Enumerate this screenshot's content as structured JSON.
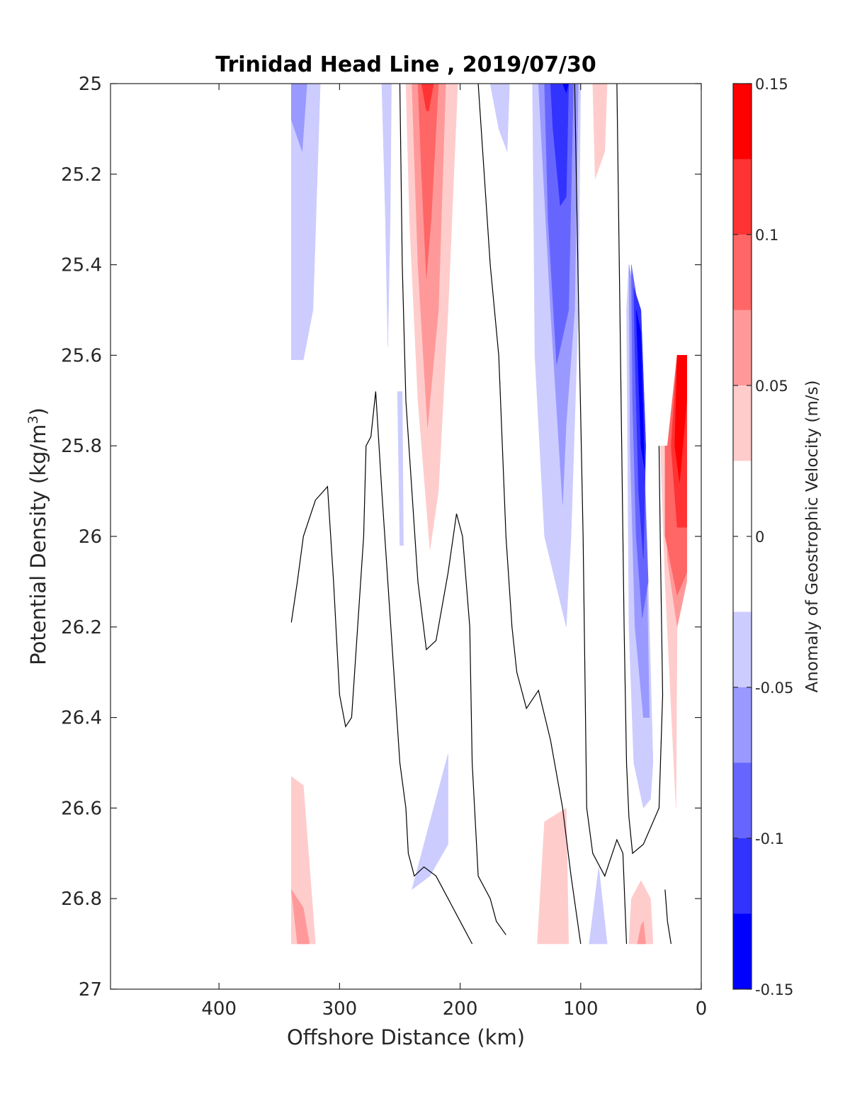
{
  "chart_data": {
    "type": "heatmap",
    "title": "Trinidad Head Line , 2019/07/30",
    "xlabel": "Offshore Distance (km)",
    "ylabel_main": "Potential Density (kg/m",
    "ylabel_sup": "3",
    "ylabel_close": ")",
    "colorbar_label": "Anomaly of Geostrophic Velocity (m/s)",
    "xlim": [
      490,
      0
    ],
    "ylim": [
      25,
      27
    ],
    "y_reversed": true,
    "x_ticks": [
      400,
      300,
      200,
      100,
      0
    ],
    "x_tick_labels": [
      "400",
      "300",
      "200",
      "100",
      "0"
    ],
    "y_ticks": [
      25,
      25.2,
      25.4,
      25.6,
      25.8,
      26,
      26.2,
      26.4,
      26.6,
      26.8,
      27
    ],
    "y_tick_labels": [
      "25",
      "25.2",
      "25.4",
      "25.6",
      "25.8",
      "26",
      "26.2",
      "26.4",
      "26.6",
      "26.8",
      "27"
    ],
    "colorbar": {
      "range": [
        -0.15,
        0.15
      ],
      "ticks": [
        0.15,
        0.1,
        0.05,
        0,
        -0.05,
        -0.1,
        -0.15
      ],
      "tick_labels": [
        "0.15",
        "0.1",
        "0.05",
        "0",
        "-0.05",
        "-0.1",
        "-0.15"
      ],
      "levels": [
        -0.15,
        -0.125,
        -0.1,
        -0.075,
        -0.05,
        -0.025,
        0.025,
        0.05,
        0.075,
        0.1,
        0.125,
        0.15
      ],
      "colors": [
        "#0000ff",
        "#3333ff",
        "#6666ff",
        "#9999ff",
        "#ccccff",
        "#ffffff",
        "#ffcccc",
        "#ff9999",
        "#ff6666",
        "#ff3333",
        "#ff0000"
      ]
    },
    "regions": [
      {
        "name": "pos-1",
        "color": "#ffcccc",
        "points": [
          [
            340,
            26.53
          ],
          [
            330,
            26.55
          ],
          [
            320,
            26.9
          ],
          [
            340,
            26.9
          ]
        ]
      },
      {
        "name": "pos-2",
        "color": "#ff9999",
        "points": [
          [
            340,
            26.78
          ],
          [
            330,
            26.82
          ],
          [
            325,
            26.9
          ],
          [
            335,
            26.9
          ]
        ]
      },
      {
        "name": "pos-3",
        "color": "#ffcccc",
        "points": [
          [
            245,
            25.0
          ],
          [
            202,
            25.0
          ],
          [
            210,
            25.5
          ],
          [
            218,
            25.9
          ],
          [
            225,
            26.03
          ],
          [
            235,
            25.7
          ],
          [
            242,
            25.3
          ]
        ]
      },
      {
        "name": "pos-4",
        "color": "#ff9999",
        "points": [
          [
            240,
            25.0
          ],
          [
            212,
            25.0
          ],
          [
            218,
            25.5
          ],
          [
            227,
            25.76
          ],
          [
            235,
            25.4
          ]
        ]
      },
      {
        "name": "pos-5",
        "color": "#ff6666",
        "points": [
          [
            235,
            25.0
          ],
          [
            218,
            25.0
          ],
          [
            224,
            25.3
          ],
          [
            228,
            25.43
          ],
          [
            232,
            25.2
          ]
        ]
      },
      {
        "name": "pos-6",
        "color": "#ff3333",
        "points": [
          [
            232,
            25.0
          ],
          [
            222,
            25.0
          ],
          [
            226,
            25.06
          ],
          [
            228,
            25.06
          ]
        ]
      },
      {
        "name": "pos-7",
        "color": "#ffcccc",
        "points": [
          [
            136,
            26.9
          ],
          [
            110,
            26.9
          ],
          [
            112,
            26.6
          ],
          [
            130,
            26.63
          ]
        ]
      },
      {
        "name": "pos-8",
        "color": "#ffcccc",
        "points": [
          [
            90,
            25.0
          ],
          [
            78,
            25.0
          ],
          [
            80,
            25.15
          ],
          [
            88,
            25.21
          ]
        ]
      },
      {
        "name": "pos-9",
        "color": "#ffcccc",
        "points": [
          [
            60,
            26.9
          ],
          [
            40,
            26.9
          ],
          [
            42,
            26.8
          ],
          [
            50,
            26.76
          ],
          [
            58,
            26.8
          ]
        ]
      },
      {
        "name": "pos-10",
        "color": "#ff9999",
        "points": [
          [
            53,
            26.9
          ],
          [
            46,
            26.9
          ],
          [
            48,
            26.85
          ],
          [
            50,
            26.86
          ]
        ]
      },
      {
        "name": "pos-11",
        "color": "#ffcccc",
        "points": [
          [
            34,
            25.8
          ],
          [
            28,
            25.8
          ],
          [
            20,
            25.6
          ],
          [
            12,
            25.6
          ],
          [
            12,
            26.1
          ],
          [
            20,
            26.2
          ],
          [
            21,
            26.6
          ],
          [
            30,
            26.1
          ]
        ]
      },
      {
        "name": "pos-12",
        "color": "#ff9999",
        "points": [
          [
            30,
            25.8
          ],
          [
            28,
            25.8
          ],
          [
            20,
            25.6
          ],
          [
            12,
            25.6
          ],
          [
            12,
            26.1
          ],
          [
            20,
            26.2
          ],
          [
            28,
            26.05
          ]
        ]
      },
      {
        "name": "pos-13",
        "color": "#ff6666",
        "points": [
          [
            30,
            25.8
          ],
          [
            28,
            25.8
          ],
          [
            20,
            25.6
          ],
          [
            12,
            25.6
          ],
          [
            12,
            26.08
          ],
          [
            20,
            26.13
          ],
          [
            30,
            26.0
          ]
        ]
      },
      {
        "name": "pos-14",
        "color": "#ff3333",
        "points": [
          [
            25,
            25.8
          ],
          [
            20,
            25.6
          ],
          [
            12,
            25.6
          ],
          [
            12,
            25.98
          ],
          [
            20,
            25.98
          ]
        ]
      },
      {
        "name": "pos-15",
        "color": "#ff0000",
        "points": [
          [
            22,
            25.8
          ],
          [
            20,
            25.6
          ],
          [
            12,
            25.6
          ],
          [
            12,
            25.7
          ],
          [
            18,
            25.88
          ]
        ]
      },
      {
        "name": "neg-1",
        "color": "#ccccff",
        "points": [
          [
            340,
            25.0
          ],
          [
            316,
            25.0
          ],
          [
            322,
            25.5
          ],
          [
            330,
            25.61
          ],
          [
            340,
            25.61
          ]
        ]
      },
      {
        "name": "neg-2",
        "color": "#9999ff",
        "points": [
          [
            340,
            25.0
          ],
          [
            327,
            25.0
          ],
          [
            331,
            25.15
          ],
          [
            340,
            25.08
          ]
        ]
      },
      {
        "name": "neg-3",
        "color": "#ccccff",
        "points": [
          [
            265,
            25.0
          ],
          [
            257,
            25.0
          ],
          [
            258,
            25.3
          ],
          [
            260,
            25.58
          ],
          [
            262,
            25.3
          ]
        ]
      },
      {
        "name": "neg-4",
        "color": "#ccccff",
        "points": [
          [
            252,
            25.68
          ],
          [
            248,
            25.68
          ],
          [
            247,
            26.02
          ],
          [
            250,
            26.02
          ]
        ]
      },
      {
        "name": "neg-5",
        "color": "#ccccff",
        "points": [
          [
            240,
            26.78
          ],
          [
            210,
            26.48
          ],
          [
            210,
            26.68
          ],
          [
            225,
            26.75
          ]
        ]
      },
      {
        "name": "neg-6",
        "color": "#ccccff",
        "points": [
          [
            175,
            25.0
          ],
          [
            159,
            25.0
          ],
          [
            161,
            25.15
          ],
          [
            168,
            25.1
          ]
        ]
      },
      {
        "name": "neg-7",
        "color": "#ccccff",
        "points": [
          [
            140,
            25.0
          ],
          [
            100,
            25.0
          ],
          [
            102,
            25.5
          ],
          [
            108,
            26.0
          ],
          [
            112,
            26.2
          ],
          [
            130,
            26.0
          ],
          [
            138,
            25.6
          ]
        ]
      },
      {
        "name": "neg-8",
        "color": "#9999ff",
        "points": [
          [
            135,
            25.0
          ],
          [
            102,
            25.0
          ],
          [
            105,
            25.5
          ],
          [
            112,
            25.75
          ],
          [
            115,
            25.93
          ],
          [
            125,
            25.5
          ]
        ]
      },
      {
        "name": "neg-9",
        "color": "#6666ff",
        "points": [
          [
            130,
            25.0
          ],
          [
            106,
            25.0
          ],
          [
            110,
            25.5
          ],
          [
            120,
            25.62
          ],
          [
            127,
            25.3
          ]
        ]
      },
      {
        "name": "neg-10",
        "color": "#3333ff",
        "points": [
          [
            125,
            25.0
          ],
          [
            110,
            25.0
          ],
          [
            112,
            25.25
          ],
          [
            117,
            25.27
          ],
          [
            123,
            25.1
          ]
        ]
      },
      {
        "name": "neg-11",
        "color": "#0000ff",
        "points": [
          [
            115,
            25.0
          ],
          [
            110,
            25.0
          ],
          [
            112,
            25.02
          ]
        ]
      },
      {
        "name": "neg-12",
        "color": "#ccccff",
        "points": [
          [
            85,
            26.73
          ],
          [
            78,
            26.9
          ],
          [
            93,
            26.9
          ]
        ]
      },
      {
        "name": "neg-13",
        "color": "#ccccff",
        "points": [
          [
            60,
            25.4
          ],
          [
            55,
            25.5
          ],
          [
            50,
            25.6
          ],
          [
            45,
            26.0
          ],
          [
            40,
            26.5
          ],
          [
            42,
            26.58
          ],
          [
            48,
            26.6
          ],
          [
            56,
            26.5
          ],
          [
            60,
            26.2
          ],
          [
            62,
            25.5
          ]
        ]
      },
      {
        "name": "neg-14",
        "color": "#9999ff",
        "points": [
          [
            60,
            25.4
          ],
          [
            53,
            25.5
          ],
          [
            48,
            25.9
          ],
          [
            45,
            26.1
          ],
          [
            43,
            26.4
          ],
          [
            48,
            26.4
          ],
          [
            55,
            26.2
          ],
          [
            59,
            25.8
          ]
        ]
      },
      {
        "name": "neg-15",
        "color": "#6666ff",
        "points": [
          [
            58,
            25.4
          ],
          [
            52,
            25.5
          ],
          [
            48,
            25.8
          ],
          [
            44,
            26.1
          ],
          [
            49,
            26.18
          ],
          [
            54,
            26.0
          ],
          [
            57,
            25.7
          ]
        ]
      },
      {
        "name": "neg-16",
        "color": "#3333ff",
        "points": [
          [
            56,
            25.45
          ],
          [
            50,
            25.5
          ],
          [
            46,
            25.8
          ],
          [
            48,
            26.05
          ],
          [
            52,
            25.9
          ],
          [
            55,
            25.6
          ]
        ]
      },
      {
        "name": "neg-17",
        "color": "#0000ff",
        "points": [
          [
            54,
            25.5
          ],
          [
            50,
            25.55
          ],
          [
            47,
            25.85
          ],
          [
            50,
            25.8
          ]
        ]
      }
    ],
    "contour_lines": [
      [
        [
          340,
          26.19
        ],
        [
          335,
          26.1
        ],
        [
          330,
          26.0
        ],
        [
          320,
          25.92
        ],
        [
          310,
          25.89
        ],
        [
          305,
          26.1
        ],
        [
          300,
          26.35
        ],
        [
          295,
          26.42
        ],
        [
          290,
          26.4
        ],
        [
          285,
          26.2
        ],
        [
          280,
          26.0
        ],
        [
          278,
          25.8
        ],
        [
          274,
          25.78
        ],
        [
          270,
          25.68
        ],
        [
          265,
          25.9
        ],
        [
          260,
          26.1
        ],
        [
          255,
          26.3
        ],
        [
          250,
          26.5
        ],
        [
          245,
          26.6
        ],
        [
          243,
          26.7
        ],
        [
          238,
          26.75
        ],
        [
          230,
          26.73
        ],
        [
          220,
          26.75
        ],
        [
          210,
          26.8
        ],
        [
          200,
          26.85
        ],
        [
          190,
          26.9
        ]
      ],
      [
        [
          250,
          25.0
        ],
        [
          248,
          25.4
        ],
        [
          245,
          25.7
        ],
        [
          240,
          25.9
        ],
        [
          235,
          26.1
        ],
        [
          228,
          26.25
        ],
        [
          220,
          26.23
        ],
        [
          210,
          26.08
        ],
        [
          203,
          25.95
        ],
        [
          198,
          26.0
        ],
        [
          192,
          26.2
        ],
        [
          190,
          26.5
        ],
        [
          188,
          26.6
        ],
        [
          185,
          26.75
        ],
        [
          175,
          26.8
        ],
        [
          170,
          26.85
        ],
        [
          162,
          26.88
        ]
      ],
      [
        [
          185,
          25.0
        ],
        [
          180,
          25.2
        ],
        [
          175,
          25.4
        ],
        [
          168,
          25.6
        ],
        [
          165,
          25.8
        ],
        [
          162,
          26.0
        ],
        [
          157,
          26.2
        ],
        [
          153,
          26.3
        ],
        [
          145,
          26.38
        ],
        [
          135,
          26.34
        ],
        [
          125,
          26.45
        ],
        [
          115,
          26.6
        ],
        [
          108,
          26.75
        ],
        [
          100,
          26.9
        ]
      ],
      [
        [
          105,
          25.0
        ],
        [
          103,
          25.3
        ],
        [
          101,
          25.6
        ],
        [
          98,
          26.0
        ],
        [
          96,
          26.4
        ],
        [
          95,
          26.6
        ],
        [
          90,
          26.7
        ],
        [
          80,
          26.75
        ],
        [
          70,
          26.67
        ],
        [
          65,
          26.7
        ],
        [
          62,
          26.9
        ]
      ],
      [
        [
          70,
          25.0
        ],
        [
          68,
          25.4
        ],
        [
          66,
          25.8
        ],
        [
          64,
          26.2
        ],
        [
          62,
          26.5
        ],
        [
          60,
          26.62
        ],
        [
          57,
          26.7
        ],
        [
          48,
          26.68
        ],
        [
          35,
          26.6
        ],
        [
          32,
          26.35
        ],
        [
          34,
          26.0
        ],
        [
          35,
          25.8
        ]
      ],
      [
        [
          30,
          26.78
        ],
        [
          28,
          26.85
        ],
        [
          25,
          26.9
        ]
      ]
    ]
  }
}
